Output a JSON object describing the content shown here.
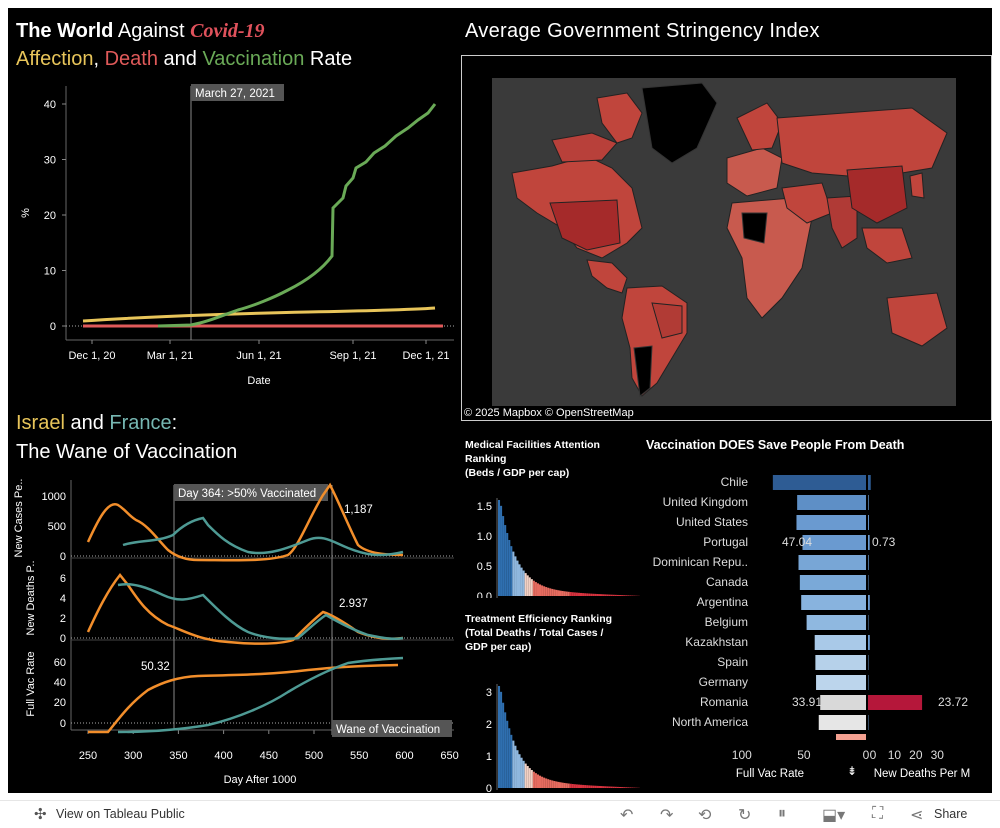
{
  "world_title": {
    "line1_bold": "The World",
    "line1_rest": " Against ",
    "covid": "Covid-19",
    "affection": "Affection",
    "comma": ", ",
    "death": "Death",
    "and": " and ",
    "vaccination": "Vaccination",
    "rate": " Rate"
  },
  "world_chart": {
    "y_label": "%",
    "x_label": "Date",
    "y_ticks": [
      "0",
      "10",
      "20",
      "30",
      "40"
    ],
    "x_ticks": [
      "Dec 1, 20",
      "Mar 1, 21",
      "Jun 1, 21",
      "Sep 1, 21",
      "Dec 1, 21"
    ],
    "annotation": "March 27, 2021"
  },
  "map": {
    "title": "Average Government Stringency Index",
    "attribution": "© 2025 Mapbox  © OpenStreetMap"
  },
  "israel_title": {
    "israel": "Israel",
    "and": " and ",
    "france": "France",
    "colon": ":",
    "line2": "The Wane of Vaccination"
  },
  "israel_chart": {
    "y_label_cases": "New Cases Pe..",
    "y_label_deaths": "New Deaths P..",
    "y_label_vac": "Full Vac Rate",
    "x_label": "Day After 1000",
    "cases_ticks": [
      "0",
      "500",
      "1000"
    ],
    "deaths_ticks": [
      "0",
      "2",
      "4",
      "6"
    ],
    "vac_ticks": [
      "0",
      "20",
      "40",
      "60"
    ],
    "x_ticks": [
      "250",
      "300",
      "350",
      "400",
      "450",
      "500",
      "550",
      "600",
      "650"
    ],
    "ann_day364": "Day 364: >50% Vaccinated",
    "ann_1187": "1,187",
    "ann_2937": "2.937",
    "ann_5032": "50.32",
    "ann_wane": "Wane of Vaccination"
  },
  "medical": {
    "title1": "Medical Facilities Attention",
    "title2": "Ranking",
    "title3": "(Beds / GDP per cap)",
    "ticks": [
      "0.0",
      "0.5",
      "1.0",
      "1.5"
    ]
  },
  "treatment": {
    "title1": "Treatment Efficiency Ranking",
    "title2": "(Total Deaths / Total Cases /",
    "title3": "GDP per cap)",
    "ticks": [
      "0",
      "1",
      "2",
      "3"
    ]
  },
  "vacdeath": {
    "title": "Vaccination DOES Save People From Death",
    "countries": [
      "Chile",
      "United Kingdom",
      "United States",
      "Portugal",
      "Dominican Repu..",
      "Canada",
      "Argentina",
      "Belgium",
      "Kazakhstan",
      "Spain",
      "Germany",
      "Romania",
      "North America"
    ],
    "vac_values": [
      69.0,
      51.0,
      51.5,
      47.04,
      50.0,
      49.0,
      48.0,
      44.0,
      38.0,
      37.5,
      37.0,
      33.91,
      35.0
    ],
    "death_values": [
      1.2,
      0.3,
      0.4,
      0.73,
      0.3,
      0.2,
      0.8,
      0.2,
      0.8,
      0.2,
      0.2,
      23.72,
      0.2
    ],
    "label_vac_portugal": "47.04",
    "label_death_portugal": "0.73",
    "label_vac_romania": "33.91",
    "label_death_romania": "23.72",
    "left_ticks": [
      "100",
      "50",
      "0"
    ],
    "right_ticks": [
      "0",
      "10",
      "20",
      "30"
    ],
    "left_axis_label": "Full Vac Rate",
    "right_axis_label": "New Deaths Per M"
  },
  "footer": {
    "view_label": "View on Tableau Public",
    "share_label": "Share"
  },
  "colors": {
    "vaccination": "#6aaa57",
    "affection": "#e8c55a",
    "death": "#e05a5a",
    "israel": "#f28e2b",
    "france": "#4e9a94",
    "romania_bar": "#b5173a"
  }
}
